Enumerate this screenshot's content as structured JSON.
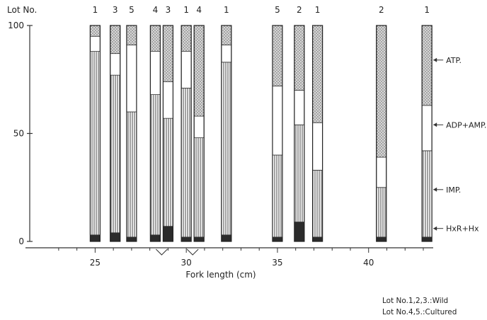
{
  "chart_data": {
    "type": "bar",
    "stacked": true,
    "orientation": "vertical",
    "lot_header": "Lot No.",
    "xlabel": "Fork length (cm)",
    "ylabel": "",
    "ylim": [
      0,
      100
    ],
    "xlim": [
      22.5,
      43
    ],
    "yticks": [
      "0",
      "50",
      "100"
    ],
    "xticks": [
      "25",
      "30",
      "35",
      "40"
    ],
    "bars": [
      {
        "lot": "1",
        "fork_length": 25.0,
        "HxR+Hx": 3,
        "IMP": 85,
        "ADP+AMP": 7,
        "ATP": 5
      },
      {
        "lot": "3",
        "fork_length": 26.1,
        "HxR+Hx": 4,
        "IMP": 73,
        "ADP+AMP": 10,
        "ATP": 13
      },
      {
        "lot": "5",
        "fork_length": 27.0,
        "HxR+Hx": 2,
        "IMP": 58,
        "ADP+AMP": 31,
        "ATP": 9
      },
      {
        "lot": "4",
        "fork_length": 28.3,
        "HxR+Hx": 3,
        "IMP": 65,
        "ADP+AMP": 20,
        "ATP": 12
      },
      {
        "lot": "3",
        "fork_length": 29.0,
        "HxR+Hx": 7,
        "IMP": 50,
        "ADP+AMP": 17,
        "ATP": 26
      },
      {
        "lot": "1",
        "fork_length": 30.0,
        "HxR+Hx": 2,
        "IMP": 69,
        "ADP+AMP": 17,
        "ATP": 12
      },
      {
        "lot": "4",
        "fork_length": 30.7,
        "HxR+Hx": 2,
        "IMP": 46,
        "ADP+AMP": 10,
        "ATP": 42
      },
      {
        "lot": "1",
        "fork_length": 32.2,
        "HxR+Hx": 3,
        "IMP": 80,
        "ADP+AMP": 8,
        "ATP": 9
      },
      {
        "lot": "5",
        "fork_length": 35.0,
        "HxR+Hx": 2,
        "IMP": 38,
        "ADP+AMP": 32,
        "ATP": 28
      },
      {
        "lot": "2",
        "fork_length": 36.2,
        "HxR+Hx": 9,
        "IMP": 45,
        "ADP+AMP": 16,
        "ATP": 30
      },
      {
        "lot": "1",
        "fork_length": 37.2,
        "HxR+Hx": 2,
        "IMP": 31,
        "ADP+AMP": 22,
        "ATP": 45
      },
      {
        "lot": "2",
        "fork_length": 40.7,
        "HxR+Hx": 2,
        "IMP": 23,
        "ADP+AMP": 14,
        "ATP": 61
      },
      {
        "lot": "1",
        "fork_length": 43.2,
        "HxR+Hx": 2,
        "IMP": 40,
        "ADP+AMP": 21,
        "ATP": 37
      }
    ],
    "groups": [
      {
        "fork_length": 28.65,
        "lots": [
          "4",
          "3"
        ]
      },
      {
        "fork_length": 30.35,
        "lots": [
          "1",
          "4"
        ]
      }
    ],
    "series_labels": [
      {
        "key": "ATP",
        "label": "ATP.",
        "y": 84
      },
      {
        "key": "ADP+AMP",
        "label": "ADP+AMP.",
        "y": 54
      },
      {
        "key": "IMP",
        "label": "IMP.",
        "y": 24
      },
      {
        "key": "HxR+Hx",
        "label": "HxR+Hx",
        "y": 6
      }
    ],
    "note": [
      "Lot No.1,2,3.:Wild",
      "Lot No.4,5.:Cultured"
    ]
  }
}
